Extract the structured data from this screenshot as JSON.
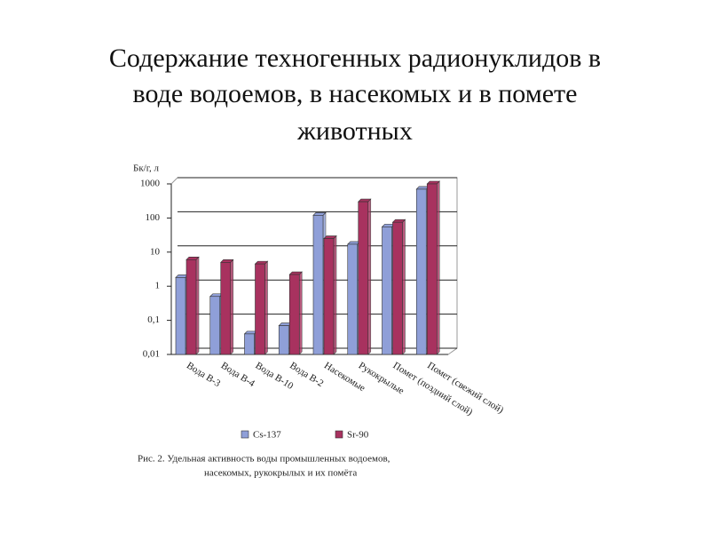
{
  "chart_data": {
    "type": "bar",
    "title": [
      "Содержание техногенных радионуклидов в",
      "воде водоемов, в насекомых и в помете",
      "животных"
    ],
    "y_label": "Бк/г, л",
    "categories": [
      "Вода В-3",
      "Вода В-4",
      "Вода В-10",
      "Вода В-2",
      "Насекомые",
      "Рукокрылые",
      "Помет (поздний слой)",
      "Помет (свежий слой)"
    ],
    "series": [
      {
        "name": "Cs-137",
        "color": "#8f9fd8",
        "values": [
          1.8,
          0.5,
          0.04,
          0.07,
          120,
          17,
          55,
          700
        ]
      },
      {
        "name": "Sr-90",
        "color": "#a8325f",
        "values": [
          6,
          5,
          4.5,
          2.2,
          25,
          300,
          75,
          1000
        ]
      }
    ],
    "log_scale": true,
    "ylim": [
      0.01,
      1000
    ],
    "yticks": [
      {
        "value": 0.01,
        "label": "0,01"
      },
      {
        "value": 0.1,
        "label": "0,1"
      },
      1,
      10,
      100,
      1000
    ],
    "grid": true,
    "caption": [
      "Рис. 2. Удельная активность воды промышленных водоемов,",
      "насекомых, рукокрылых и их помёта"
    ]
  }
}
